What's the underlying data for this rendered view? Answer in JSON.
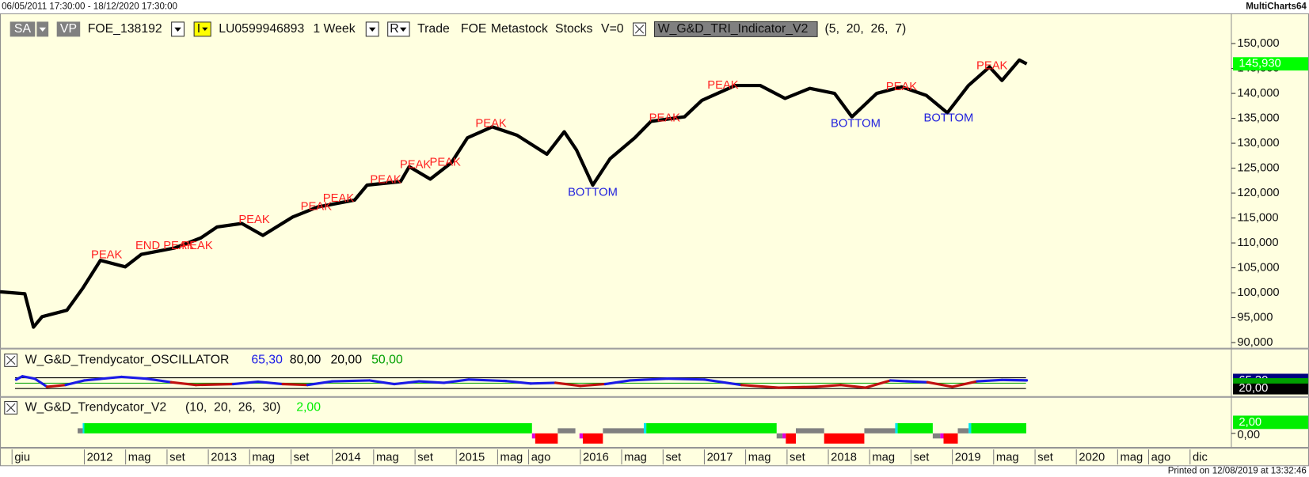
{
  "header": {
    "date_range": "06/05/2011 17:30:00 - 18/12/2020 17:30:00",
    "app": "MultiCharts64"
  },
  "toolbar": [
    "SA",
    "VP",
    "FOE_138192",
    "I",
    "LU0599946893",
    "1 Week",
    "R",
    "Trade",
    "FOE",
    "Metastock",
    "Stocks",
    "V=0",
    "W_G&D_TRI_Indicator_V2",
    "(5,  20,  26,  7)"
  ],
  "footer": "Printed on 12/08/2019 at 13:32:46",
  "time_axis": {
    "xlim": [
      2011.32,
      2021.25
    ],
    "xticks": [
      {
        "value": 2011.417,
        "label": "giu"
      },
      2012,
      {
        "value": 2012.333,
        "label": "mag"
      },
      {
        "value": 2012.667,
        "label": "set"
      },
      2013,
      {
        "value": 2013.333,
        "label": "mag"
      },
      {
        "value": 2013.667,
        "label": "set"
      },
      2014,
      {
        "value": 2014.333,
        "label": "mag"
      },
      {
        "value": 2014.667,
        "label": "set"
      },
      2015,
      {
        "value": 2015.333,
        "label": "mag"
      },
      {
        "value": 2015.583,
        "label": "ago"
      },
      2016,
      {
        "value": 2016.333,
        "label": "mag"
      },
      {
        "value": 2016.667,
        "label": "set"
      },
      2017,
      {
        "value": 2017.333,
        "label": "mag"
      },
      {
        "value": 2017.667,
        "label": "set"
      },
      2018,
      {
        "value": 2018.333,
        "label": "mag"
      },
      {
        "value": 2018.667,
        "label": "set"
      },
      2019,
      {
        "value": 2019.333,
        "label": "mag"
      },
      {
        "value": 2019.667,
        "label": "set"
      },
      2020,
      {
        "value": 2020.333,
        "label": "mag"
      },
      {
        "value": 2020.583,
        "label": "ago"
      },
      {
        "value": 2020.917,
        "label": "dic"
      }
    ]
  },
  "chart_data": [
    {
      "type": "line",
      "x": [
        2011.32,
        2011.52,
        2011.59,
        2011.66,
        2011.86,
        2011.99,
        2012.13,
        2012.33,
        2012.46,
        2012.73,
        2012.94,
        2013.07,
        2013.27,
        2013.44,
        2013.68,
        2013.88,
        2014.18,
        2014.28,
        2014.55,
        2014.62,
        2014.79,
        2014.96,
        2015.09,
        2015.29,
        2015.49,
        2015.73,
        2015.87,
        2015.97,
        2016.1,
        2016.24,
        2016.44,
        2016.57,
        2016.84,
        2016.98,
        2017.25,
        2017.45,
        2017.65,
        2017.85,
        2018.05,
        2018.19,
        2018.39,
        2018.59,
        2018.79,
        2018.96,
        2019.13,
        2019.3,
        2019.4,
        2019.54,
        2019.6
      ],
      "series": [
        {
          "color": "#000000",
          "values": [
            100200,
            99800,
            93100,
            95200,
            96500,
            101000,
            106500,
            105200,
            107700,
            109000,
            111000,
            113200,
            113900,
            111500,
            115200,
            117200,
            118600,
            121600,
            122300,
            125300,
            122800,
            126100,
            131100,
            133300,
            131600,
            127800,
            132300,
            128600,
            121600,
            126900,
            131100,
            134400,
            135300,
            138600,
            141600,
            141600,
            139000,
            141000,
            140000,
            135300,
            140000,
            141300,
            139600,
            136100,
            141600,
            145300,
            142600,
            146700,
            145930
          ]
        }
      ],
      "ylim": [
        89300,
        155900
      ],
      "yticks": [
        {
          "value": 90000,
          "label": "90,000"
        },
        {
          "value": 95000,
          "label": "95,000"
        },
        {
          "value": 100000,
          "label": "100,000"
        },
        {
          "value": 105000,
          "label": "105,000"
        },
        {
          "value": 110000,
          "label": "110,000"
        },
        {
          "value": 115000,
          "label": "115,000"
        },
        {
          "value": 120000,
          "label": "120,000"
        },
        {
          "value": 125000,
          "label": "125,000"
        },
        {
          "value": 130000,
          "label": "130,000"
        },
        {
          "value": 135000,
          "label": "135,000"
        },
        {
          "value": 140000,
          "label": "140,000"
        },
        {
          "value": 145000,
          "label": "145,000"
        },
        {
          "value": 150000,
          "label": "150,000"
        }
      ],
      "last_value": {
        "value": 145930,
        "label": "145,930",
        "color": "#00ff00"
      },
      "annotations": [
        {
          "text": "PEAK",
          "x": 2012.18,
          "y": 107500,
          "color": "#ff2020"
        },
        {
          "text": "END PEAK",
          "x": 2012.65,
          "y": 109400,
          "color": "#ff2020"
        },
        {
          "text": "PEAK",
          "x": 2012.91,
          "y": 109400,
          "color": "#ff2020"
        },
        {
          "text": "PEAK",
          "x": 2013.37,
          "y": 114600,
          "color": "#ff2020"
        },
        {
          "text": "PEAK",
          "x": 2013.87,
          "y": 117200,
          "color": "#ff2020"
        },
        {
          "text": "PEAK",
          "x": 2014.05,
          "y": 118900,
          "color": "#ff2020"
        },
        {
          "text": "PEAK",
          "x": 2014.43,
          "y": 122600,
          "color": "#ff2020"
        },
        {
          "text": "PEAK",
          "x": 2014.67,
          "y": 125600,
          "color": "#ff2020"
        },
        {
          "text": "PEAK",
          "x": 2014.91,
          "y": 126100,
          "color": "#ff2020"
        },
        {
          "text": "PEAK",
          "x": 2015.28,
          "y": 133900,
          "color": "#ff2020"
        },
        {
          "text": "BOTTOM",
          "x": 2016.1,
          "y": 120100,
          "color": "#2222dd"
        },
        {
          "text": "PEAK",
          "x": 2016.68,
          "y": 135000,
          "color": "#ff2020"
        },
        {
          "text": "PEAK",
          "x": 2017.15,
          "y": 141600,
          "color": "#ff2020"
        },
        {
          "text": "BOTTOM",
          "x": 2018.22,
          "y": 133900,
          "color": "#2222dd"
        },
        {
          "text": "PEAK",
          "x": 2018.59,
          "y": 141300,
          "color": "#ff2020"
        },
        {
          "text": "BOTTOM",
          "x": 2018.97,
          "y": 135000,
          "color": "#2222dd"
        },
        {
          "text": "PEAK",
          "x": 2019.32,
          "y": 145500,
          "color": "#ff2020"
        }
      ]
    },
    {
      "type": "oscillator",
      "title": "W_G&D_Trendycator_OSCILLATOR",
      "x": [
        2011.45,
        2011.5,
        2011.6,
        2011.7,
        2011.85,
        2012.0,
        2012.3,
        2012.5,
        2012.7,
        2012.9,
        2013.2,
        2013.4,
        2013.6,
        2013.8,
        2014.0,
        2014.3,
        2014.5,
        2014.7,
        2014.9,
        2015.1,
        2015.4,
        2015.6,
        2015.8,
        2016.0,
        2016.2,
        2016.4,
        2016.7,
        2017.0,
        2017.3,
        2017.6,
        2017.9,
        2018.1,
        2018.3,
        2018.5,
        2018.8,
        2019.0,
        2019.2,
        2019.4,
        2019.6
      ],
      "series": [
        {
          "color": "#1a1ae6",
          "below_color": "#c01010",
          "values": [
            70,
            88,
            75,
            30,
            40,
            65,
            85,
            75,
            55,
            40,
            45,
            58,
            45,
            40,
            60,
            65,
            45,
            60,
            52,
            70,
            62,
            48,
            52,
            35,
            45,
            65,
            75,
            70,
            40,
            25,
            30,
            40,
            25,
            65,
            55,
            30,
            60,
            68,
            65.3
          ]
        }
      ],
      "last_value": {
        "value": 65.3,
        "label": "65,30",
        "color": "#1a1ae6",
        "box_color": "#000080"
      },
      "levels": [
        {
          "value": 80,
          "label": "80,00",
          "color": "#000000"
        },
        {
          "value": 20,
          "label": "20,00",
          "color": "#000000"
        },
        {
          "value": 50,
          "label": "50,00",
          "color": "#00a000"
        }
      ],
      "ylim": [
        -8,
        117
      ]
    },
    {
      "type": "state",
      "title": "W_G&D_Trendycator_V2",
      "params": "(10,  20,  26,  30)",
      "last_value": {
        "value": 2,
        "label": "2,00",
        "color": "#00ee00"
      },
      "segments": [
        {
          "x": [
            2011.946,
            2011.987
          ],
          "value": 1,
          "color": "#808080"
        },
        {
          "x": [
            2011.987,
            2012.0
          ],
          "value": 2,
          "color": "#00e5ee"
        },
        {
          "x": [
            2012.0,
            2015.61
          ],
          "value": 2,
          "color": "#00ee00"
        },
        {
          "x": [
            2015.61,
            2015.636
          ],
          "value": -1,
          "color": "#e000e0"
        },
        {
          "x": [
            2015.636,
            2015.818
          ],
          "value": -2,
          "color": "#ff0000"
        },
        {
          "x": [
            2015.818,
            2015.96
          ],
          "value": 1,
          "color": "#808080"
        },
        {
          "x": [
            2015.993,
            2016.02
          ],
          "value": -1,
          "color": "#e000e0"
        },
        {
          "x": [
            2016.02,
            2016.182
          ],
          "value": -2,
          "color": "#ff0000"
        },
        {
          "x": [
            2016.182,
            2016.512
          ],
          "value": 1,
          "color": "#808080"
        },
        {
          "x": [
            2016.512,
            2016.532
          ],
          "value": 2,
          "color": "#00e5ee"
        },
        {
          "x": [
            2016.532,
            2017.583
          ],
          "value": 2,
          "color": "#00ee00"
        },
        {
          "x": [
            2017.583,
            2017.63
          ],
          "value": -1,
          "color": "#808080"
        },
        {
          "x": [
            2017.63,
            2017.657
          ],
          "value": -1,
          "color": "#e000e0"
        },
        {
          "x": [
            2017.657,
            2017.738
          ],
          "value": -2,
          "color": "#ff0000"
        },
        {
          "x": [
            2017.738,
            2017.966
          ],
          "value": 1,
          "color": "#808080"
        },
        {
          "x": [
            2017.966,
            2018.29
          ],
          "value": -2,
          "color": "#ff0000"
        },
        {
          "x": [
            2018.29,
            2018.539
          ],
          "value": 1,
          "color": "#808080"
        },
        {
          "x": [
            2018.539,
            2018.559
          ],
          "value": 2,
          "color": "#00e5ee"
        },
        {
          "x": [
            2018.559,
            2018.842
          ],
          "value": 2,
          "color": "#00ee00"
        },
        {
          "x": [
            2018.842,
            2018.902
          ],
          "value": -1,
          "color": "#808080"
        },
        {
          "x": [
            2018.902,
            2018.929
          ],
          "value": -1,
          "color": "#e000e0"
        },
        {
          "x": [
            2018.929,
            2019.044
          ],
          "value": -2,
          "color": "#ff0000"
        },
        {
          "x": [
            2019.044,
            2019.131
          ],
          "value": 1,
          "color": "#808080"
        },
        {
          "x": [
            2019.131,
            2019.152
          ],
          "value": 2,
          "color": "#00e5ee"
        },
        {
          "x": [
            2019.152,
            2019.596
          ],
          "value": 2,
          "color": "#00ee00"
        }
      ],
      "ylim": [
        -2.5,
        3.7
      ],
      "yticks": [
        {
          "value": 0,
          "label": "0,00"
        }
      ]
    }
  ]
}
